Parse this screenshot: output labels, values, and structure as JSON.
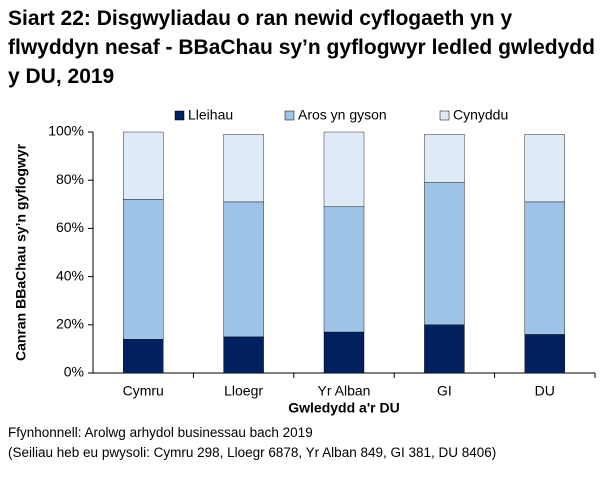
{
  "chart_data": {
    "type": "stacked-bar",
    "title": "Siart 22: Disgwyliadau o ran newid cyflogaeth yn y flwyddyn nesaf - BBaChau sy’n gyflogwyr ledled gwledydd y DU, 2019",
    "x_label": "Gwledydd a'r DU",
    "y_label": "Canran BBaChau sy’n gyflogwyr",
    "categories": [
      "Cymru",
      "Lloegr",
      "Yr Alban",
      "GI",
      "DU"
    ],
    "series": [
      {
        "name": "Lleihau",
        "color": "#002060",
        "values": [
          14,
          15,
          17,
          20,
          16
        ]
      },
      {
        "name": "Aros yn gyson",
        "color": "#9dc3e6",
        "values": [
          58,
          56,
          52,
          59,
          55
        ]
      },
      {
        "name": "Cynyddu",
        "color": "#deebf7",
        "values": [
          28,
          28,
          31,
          20,
          28
        ]
      }
    ],
    "ylim": [
      0,
      100
    ],
    "yticks": [
      {
        "value": 0,
        "label": "0%"
      },
      {
        "value": 20,
        "label": "20%"
      },
      {
        "value": 40,
        "label": "40%"
      },
      {
        "value": 60,
        "label": "60%"
      },
      {
        "value": 80,
        "label": "80%"
      },
      {
        "value": 100,
        "label": "100%"
      }
    ],
    "source": "Ffynhonnell: Arolwg arhydol businessau bach 2019",
    "note": "(Seiliau heb eu pwysoli: Cymru 298, Lloegr 6878, Yr Alban 849, GI 381, DU 8406)"
  }
}
